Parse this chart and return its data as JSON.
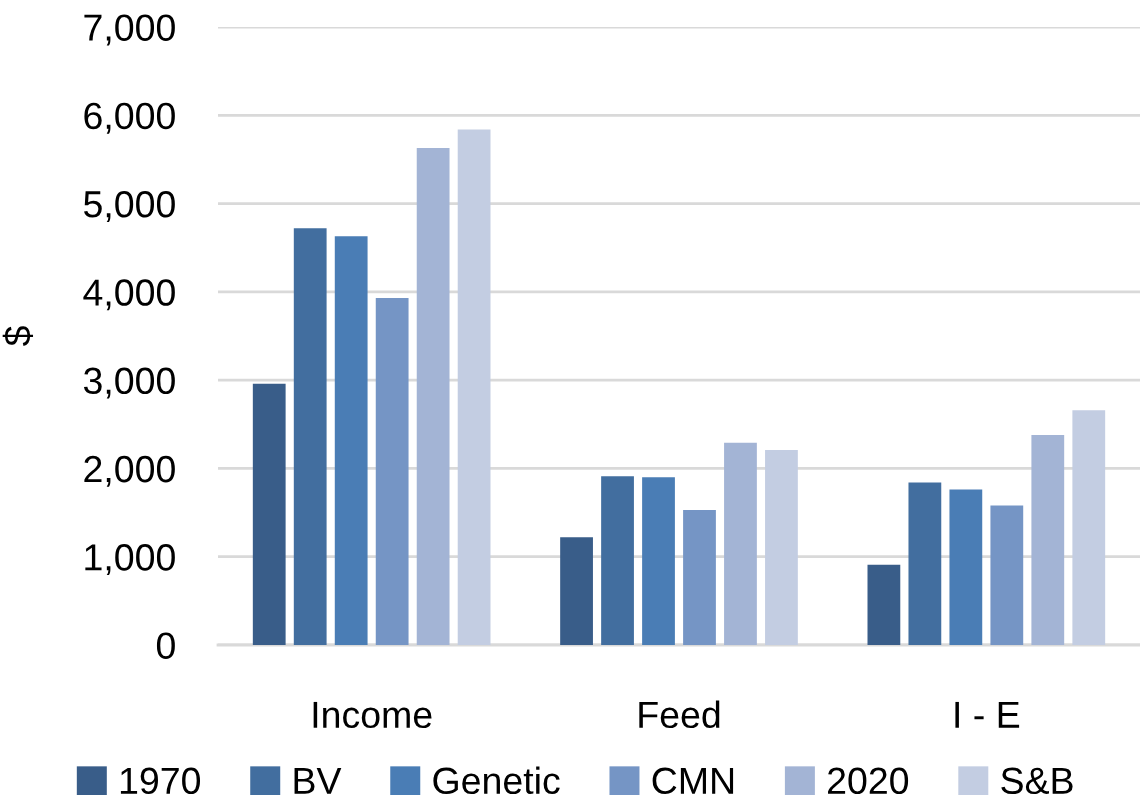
{
  "chart_data": {
    "type": "bar",
    "ylabel": "$",
    "categories": [
      "Income",
      "Feed",
      "I - E"
    ],
    "series": [
      {
        "name": "1970",
        "color": "#395d89",
        "values": [
          2960,
          1220,
          910
        ]
      },
      {
        "name": "BV",
        "color": "#426e9f",
        "values": [
          4720,
          1910,
          1840
        ]
      },
      {
        "name": "Genetic",
        "color": "#4a7db5",
        "values": [
          4630,
          1900,
          1760
        ]
      },
      {
        "name": "CMN",
        "color": "#7595c5",
        "values": [
          3930,
          1530,
          1580
        ]
      },
      {
        "name": "2020",
        "color": "#a3b4d5",
        "values": [
          5630,
          2290,
          2380
        ]
      },
      {
        "name": "S&B",
        "color": "#c3cde2",
        "values": [
          5840,
          2210,
          2660
        ]
      }
    ],
    "ylim": [
      0,
      7000
    ],
    "yticks": [
      0,
      {
        "value": 1000,
        "label": "1,000"
      },
      {
        "value": 2000,
        "label": "2,000"
      },
      {
        "value": 3000,
        "label": "3,000"
      },
      {
        "value": 4000,
        "label": "4,000"
      },
      {
        "value": 5000,
        "label": "5,000"
      },
      {
        "value": 6000,
        "label": "6,000"
      },
      {
        "value": 7000,
        "label": "7,000"
      }
    ],
    "grid": "y",
    "legend": "bottom"
  }
}
